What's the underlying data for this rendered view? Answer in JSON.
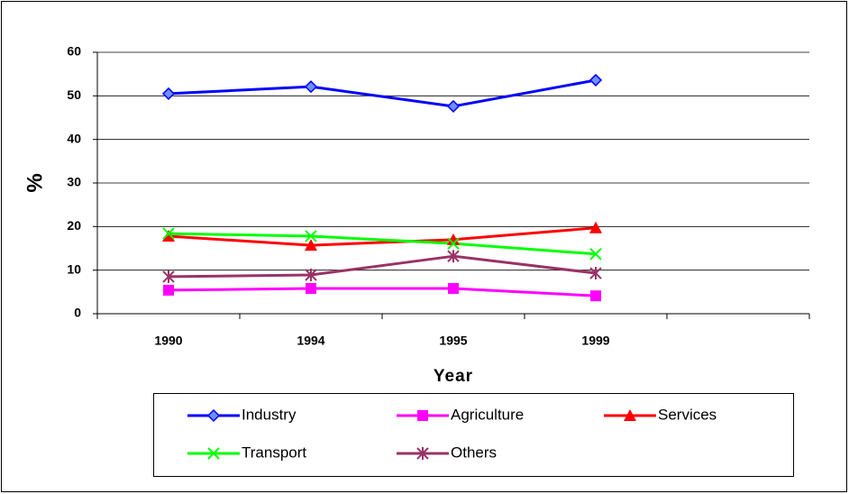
{
  "chart_data": {
    "type": "line",
    "categories": [
      "1990",
      "1994",
      "1995",
      "1999",
      null
    ],
    "series": [
      {
        "name": "Industry",
        "color": "#0000ff",
        "marker": "diamond",
        "values": [
          50.5,
          52.1,
          47.6,
          53.6,
          null
        ]
      },
      {
        "name": "Agriculture",
        "color": "#ff00ff",
        "marker": "square",
        "values": [
          5.4,
          5.8,
          5.8,
          4.1,
          null
        ]
      },
      {
        "name": "Services",
        "color": "#ff0000",
        "marker": "triangle",
        "values": [
          17.8,
          15.7,
          17.0,
          19.7,
          null
        ]
      },
      {
        "name": "Transport",
        "color": "#00ff00",
        "marker": "x",
        "values": [
          18.4,
          17.8,
          16.1,
          13.7,
          null
        ]
      },
      {
        "name": "Others",
        "color": "#993366",
        "marker": "star",
        "values": [
          8.5,
          8.9,
          13.2,
          9.3,
          null
        ]
      }
    ],
    "xlabel": "Year",
    "ylabel": "%",
    "ylim": [
      0,
      60
    ],
    "yticks": [
      0,
      10,
      20,
      30,
      40,
      50,
      60
    ],
    "grid": true,
    "legend": "bottom"
  }
}
